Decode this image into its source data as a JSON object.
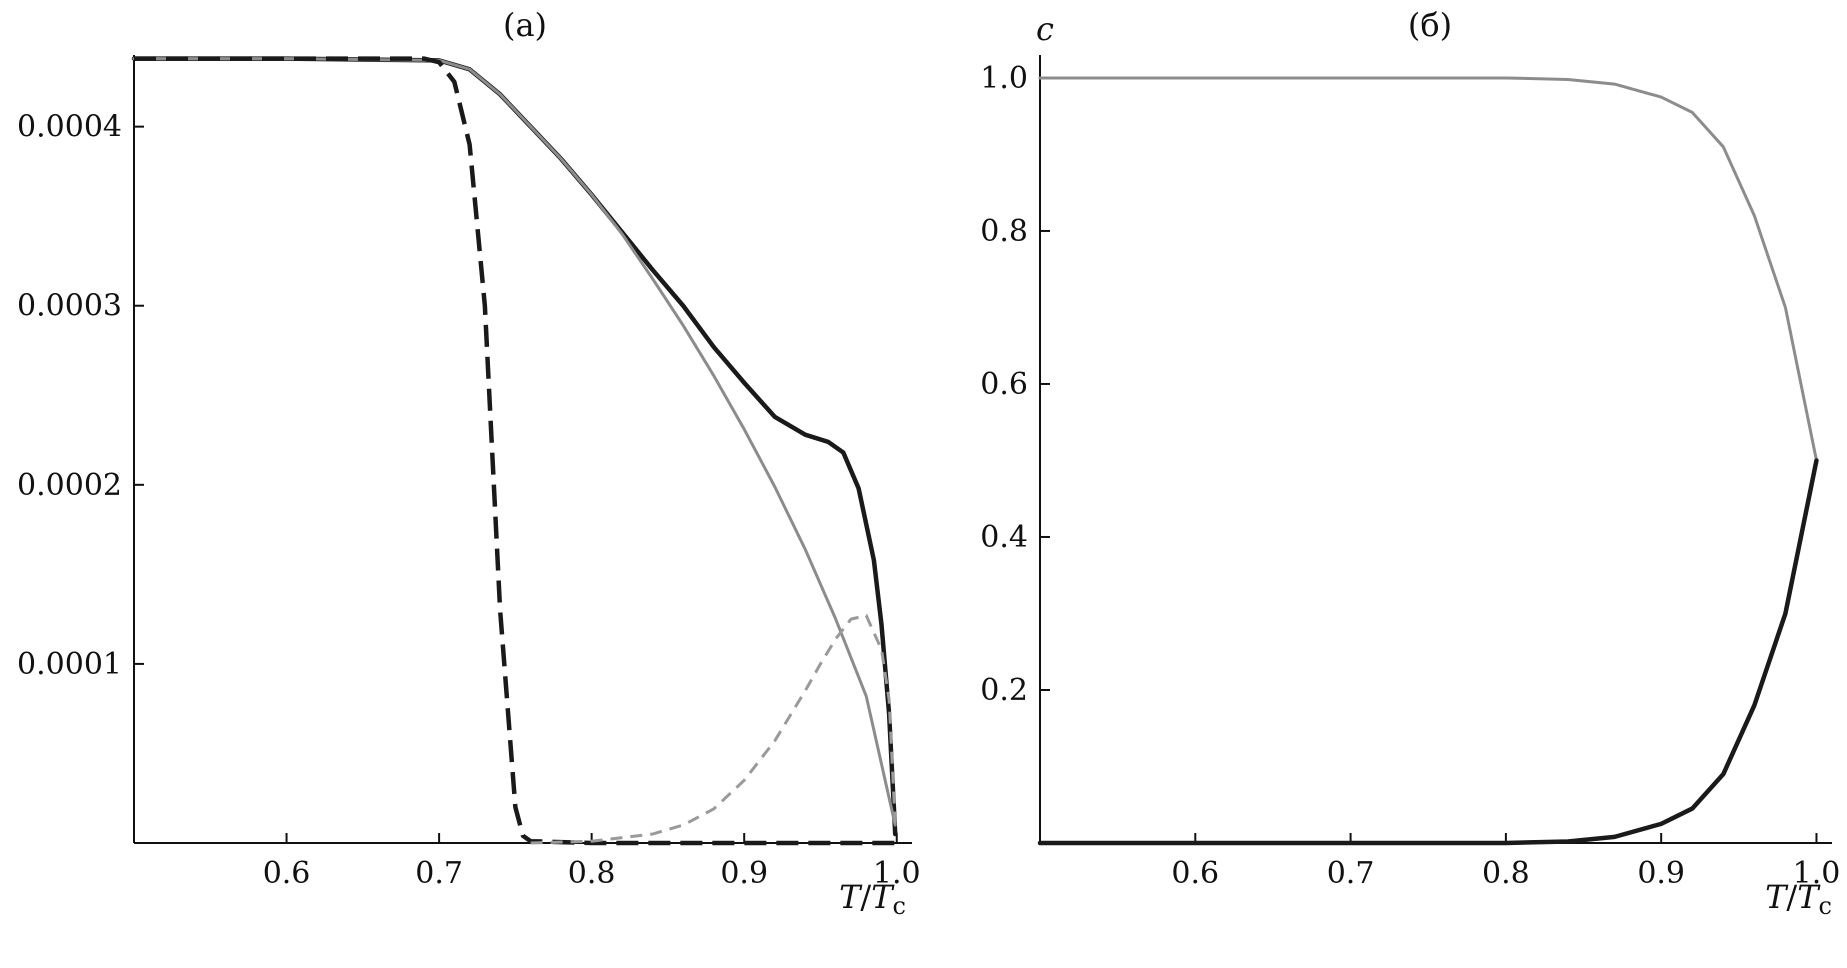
{
  "chart_data": [
    {
      "type": "line",
      "title": "(a)",
      "xlabel": "T/Tc",
      "xlabel_main": "T",
      "xlabel_sub": "c",
      "ylabel": "",
      "xlim": [
        0.5,
        1.01
      ],
      "ylim": [
        0,
        0.00044
      ],
      "xticks": [
        0.6,
        0.7,
        0.8,
        0.9,
        1.0
      ],
      "xtick_labels": [
        "0.6",
        "0.7",
        "0.8",
        "0.9",
        "1.0"
      ],
      "yticks": [
        0.0001,
        0.0002,
        0.0003,
        0.0004
      ],
      "ytick_labels": [
        "0.0001",
        "0.0002",
        "0.0003",
        "0.0004"
      ],
      "grid": false,
      "series": [
        {
          "style": "solid-thick-black",
          "color": "#1a1a1a",
          "x": [
            0.5,
            0.6,
            0.7,
            0.72,
            0.74,
            0.76,
            0.78,
            0.8,
            0.82,
            0.84,
            0.86,
            0.88,
            0.9,
            0.92,
            0.94,
            0.955,
            0.965,
            0.975,
            0.985,
            0.99,
            0.995,
            0.999
          ],
          "y": [
            0.000438,
            0.000438,
            0.000437,
            0.000432,
            0.000418,
            0.0004,
            0.000382,
            0.000362,
            0.000341,
            0.00032,
            0.0003,
            0.000277,
            0.000257,
            0.000238,
            0.000228,
            0.000224,
            0.000218,
            0.000198,
            0.000158,
            0.000122,
            7.2e-05,
            5e-06
          ]
        },
        {
          "style": "solid-thin-gray",
          "color": "#8c8c8c",
          "x": [
            0.5,
            0.6,
            0.7,
            0.72,
            0.74,
            0.76,
            0.78,
            0.8,
            0.82,
            0.84,
            0.86,
            0.88,
            0.9,
            0.92,
            0.94,
            0.96,
            0.98,
            0.999
          ],
          "y": [
            0.000438,
            0.000438,
            0.000437,
            0.000432,
            0.000418,
            0.0004,
            0.000382,
            0.000362,
            0.00034,
            0.000315,
            0.000289,
            0.000261,
            0.000231,
            0.000199,
            0.000164,
            0.000125,
            8.2e-05,
            1e-05
          ]
        },
        {
          "style": "dashed-thick-black",
          "color": "#1a1a1a",
          "x": [
            0.5,
            0.6,
            0.69,
            0.7,
            0.71,
            0.72,
            0.73,
            0.74,
            0.75,
            0.755,
            0.76,
            0.8,
            0.9,
            0.999
          ],
          "y": [
            0.000438,
            0.000438,
            0.000438,
            0.000436,
            0.000425,
            0.00039,
            0.0003,
            0.00013,
            2e-05,
            4e-06,
            1e-06,
            0.0,
            0.0,
            0.0
          ]
        },
        {
          "style": "dashed-thin-gray",
          "color": "#9a9a9a",
          "x": [
            0.76,
            0.8,
            0.84,
            0.86,
            0.88,
            0.9,
            0.92,
            0.94,
            0.95,
            0.96,
            0.97,
            0.98,
            0.99,
            0.995,
            0.999
          ],
          "y": [
            0.0,
            1e-06,
            5e-06,
            1e-05,
            1.9e-05,
            3.5e-05,
            5.7e-05,
            8.5e-05,
            0.0001,
            0.000114,
            0.000125,
            0.000127,
            0.000108,
            8e-05,
            1e-05
          ]
        }
      ]
    },
    {
      "type": "line",
      "title": "(б)",
      "xlabel": "T/Tc",
      "xlabel_main": "T",
      "xlabel_sub": "c",
      "ylabel": "c",
      "xlim": [
        0.5,
        1.01
      ],
      "ylim": [
        0,
        1.03
      ],
      "xticks": [
        0.6,
        0.7,
        0.8,
        0.9,
        1.0
      ],
      "xtick_labels": [
        "0.6",
        "0.7",
        "0.8",
        "0.9",
        "1.0"
      ],
      "yticks": [
        0.2,
        0.4,
        0.6,
        0.8,
        1.0
      ],
      "ytick_labels": [
        "0.2",
        "0.4",
        "0.6",
        "0.8",
        "1.0"
      ],
      "grid": false,
      "series": [
        {
          "style": "solid-thin-gray",
          "color": "#8c8c8c",
          "x": [
            0.5,
            0.7,
            0.8,
            0.84,
            0.87,
            0.9,
            0.92,
            0.94,
            0.96,
            0.98,
            0.99,
            1.0
          ],
          "y": [
            1.0,
            1.0,
            1.0,
            0.998,
            0.992,
            0.975,
            0.955,
            0.91,
            0.82,
            0.7,
            0.6,
            0.5
          ]
        },
        {
          "style": "solid-thick-black",
          "color": "#1a1a1a",
          "x": [
            0.5,
            0.7,
            0.8,
            0.84,
            0.87,
            0.9,
            0.92,
            0.94,
            0.96,
            0.98,
            0.99,
            1.0
          ],
          "y": [
            0.0,
            0.0,
            0.0,
            0.002,
            0.008,
            0.025,
            0.045,
            0.09,
            0.18,
            0.3,
            0.4,
            0.5
          ]
        }
      ]
    }
  ]
}
